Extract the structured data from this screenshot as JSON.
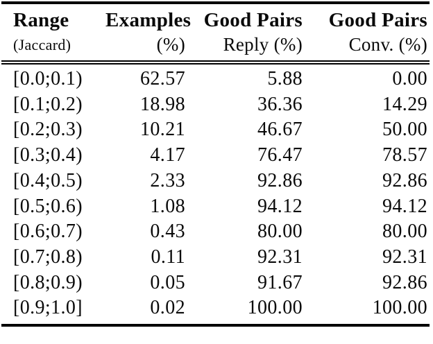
{
  "table": {
    "header": {
      "columns": [
        {
          "line1": "Range",
          "line2": "(Jaccard)"
        },
        {
          "line1": "Examples",
          "line2": "(%)"
        },
        {
          "line1": "Good Pairs",
          "line2": "Reply (%)"
        },
        {
          "line1": "Good Pairs",
          "line2": "Conv. (%)"
        }
      ]
    },
    "rows": [
      {
        "range": "[0.0;0.1)",
        "examples": "62.57",
        "reply_pct": "5.88",
        "conv_pct": "0.00"
      },
      {
        "range": "[0.1;0.2)",
        "examples": "18.98",
        "reply_pct": "36.36",
        "conv_pct": "14.29"
      },
      {
        "range": "[0.2;0.3)",
        "examples": "10.21",
        "reply_pct": "46.67",
        "conv_pct": "50.00"
      },
      {
        "range": "[0.3;0.4)",
        "examples": "4.17",
        "reply_pct": "76.47",
        "conv_pct": "78.57"
      },
      {
        "range": "[0.4;0.5)",
        "examples": "2.33",
        "reply_pct": "92.86",
        "conv_pct": "92.86"
      },
      {
        "range": "[0.5;0.6)",
        "examples": "1.08",
        "reply_pct": "94.12",
        "conv_pct": "94.12"
      },
      {
        "range": "[0.6;0.7)",
        "examples": "0.43",
        "reply_pct": "80.00",
        "conv_pct": "80.00"
      },
      {
        "range": "[0.7;0.8)",
        "examples": "0.11",
        "reply_pct": "92.31",
        "conv_pct": "92.31"
      },
      {
        "range": "[0.8;0.9)",
        "examples": "0.05",
        "reply_pct": "91.67",
        "conv_pct": "92.86"
      },
      {
        "range": "[0.9;1.0]",
        "examples": "0.02",
        "reply_pct": "100.00",
        "conv_pct": "100.00"
      }
    ]
  },
  "colors": {
    "text": "#0a0a0a",
    "rule": "#000000",
    "background": "#ffffff"
  }
}
